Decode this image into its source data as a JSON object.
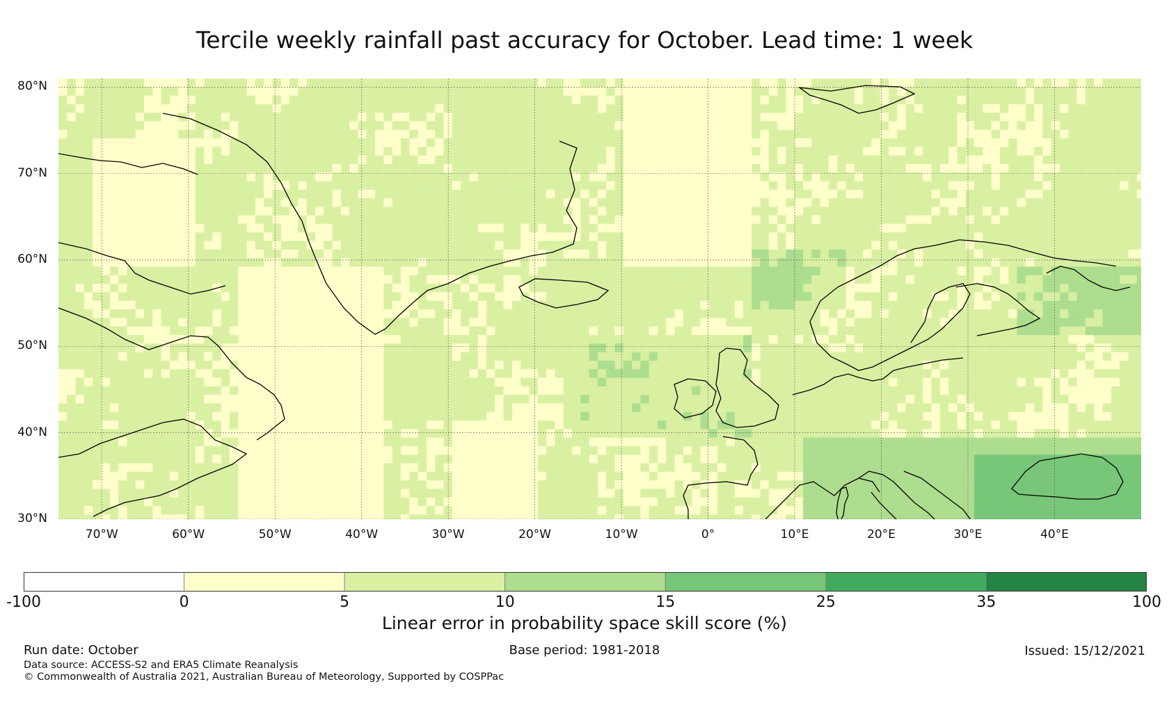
{
  "title": "Tercile weekly rainfall past accuracy for October. Lead time: 1 week",
  "map": {
    "lat_range": [
      30,
      81
    ],
    "lon_range": [
      -75,
      50
    ],
    "lat_ticks": [
      "80°N",
      "70°N",
      "60°N",
      "50°N",
      "40°N",
      "30°N"
    ],
    "lon_ticks": [
      "70°W",
      "60°W",
      "50°W",
      "40°W",
      "30°W",
      "20°W",
      "10°W",
      "0°",
      "10°E",
      "20°E",
      "30°E",
      "40°E"
    ],
    "lat_tick_values": [
      80,
      70,
      60,
      50,
      40,
      30
    ],
    "lon_tick_values": [
      -70,
      -60,
      -50,
      -40,
      -30,
      -20,
      -10,
      0,
      10,
      20,
      30,
      40
    ]
  },
  "colorbar": {
    "bounds": [
      "-100",
      "0",
      "5",
      "10",
      "15",
      "25",
      "35",
      "100"
    ],
    "colors": [
      "#ffffff",
      "#ffffcc",
      "#d9f0a3",
      "#addd8e",
      "#78c679",
      "#41ab5d",
      "#238443"
    ],
    "label": "Linear error in probability space skill score (%)"
  },
  "footer": {
    "run_date": "Run date: October",
    "base_period": "Base period: 1981-2018",
    "issued": "Issued: 15/12/2021",
    "data_source": "Data source: ACCESS-S2 and ERA5 Climate Reanalysis",
    "copyright": "© Commonwealth of Australia 2021, Australian Bureau of Meteorology, Supported by COSPPac"
  }
}
